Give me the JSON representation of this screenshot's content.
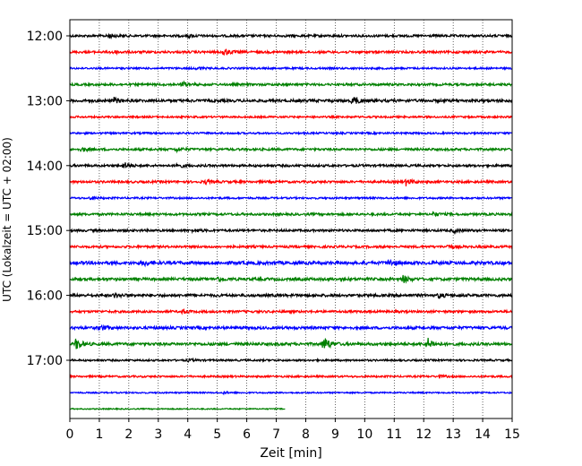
{
  "chart_data": {
    "type": "line",
    "title": "",
    "xlabel": "Zeit  [min]",
    "ylabel": "UTC (Lokalzeit = UTC + 02:00)",
    "xlim": [
      0,
      15
    ],
    "x_ticks": [
      "0",
      "1",
      "2",
      "3",
      "4",
      "5",
      "6",
      "7",
      "8",
      "9",
      "10",
      "11",
      "12",
      "13",
      "14",
      "15"
    ],
    "y_tick_labels": [
      {
        "label": "12:00",
        "row": 0
      },
      {
        "label": "13:00",
        "row": 4
      },
      {
        "label": "14:00",
        "row": 8
      },
      {
        "label": "15:00",
        "row": 12
      },
      {
        "label": "16:00",
        "row": 16
      },
      {
        "label": "17:00",
        "row": 20
      }
    ],
    "grid": "vertical dotted at each minute",
    "row_interval_minutes": 15,
    "color_cycle": [
      "#000000",
      "#ff0000",
      "#0000ff",
      "#008000"
    ],
    "traces": [
      {
        "start": "12:00",
        "end_min": 15,
        "amplitude": 0.25,
        "events": [
          {
            "t": 1.3,
            "amp": 0.5
          },
          {
            "t": 4.0,
            "amp": 0.35
          }
        ]
      },
      {
        "start": "12:15",
        "end_min": 15,
        "amplitude": 0.25,
        "events": [
          {
            "t": 1.4,
            "amp": 0.5
          },
          {
            "t": 5.2,
            "amp": 0.9
          }
        ]
      },
      {
        "start": "12:30",
        "end_min": 15,
        "amplitude": 0.2,
        "events": [
          {
            "t": 4.3,
            "amp": 0.3
          }
        ]
      },
      {
        "start": "12:45",
        "end_min": 15,
        "amplitude": 0.25,
        "events": [
          {
            "t": 3.8,
            "amp": 0.6
          }
        ]
      },
      {
        "start": "13:00",
        "end_min": 15,
        "amplitude": 0.3,
        "events": [
          {
            "t": 1.5,
            "amp": 0.6
          },
          {
            "t": 9.6,
            "amp": 1.1
          }
        ]
      },
      {
        "start": "13:15",
        "end_min": 15,
        "amplitude": 0.2,
        "events": []
      },
      {
        "start": "13:30",
        "end_min": 15,
        "amplitude": 0.2,
        "events": []
      },
      {
        "start": "13:45",
        "end_min": 15,
        "amplitude": 0.25,
        "events": [
          {
            "t": 0.4,
            "amp": 0.5
          },
          {
            "t": 3.6,
            "amp": 0.4
          }
        ]
      },
      {
        "start": "14:00",
        "end_min": 15,
        "amplitude": 0.25,
        "events": [
          {
            "t": 1.8,
            "amp": 0.8
          },
          {
            "t": 3.6,
            "amp": 0.6
          }
        ]
      },
      {
        "start": "14:15",
        "end_min": 15,
        "amplitude": 0.25,
        "events": [
          {
            "t": 4.6,
            "amp": 0.4
          },
          {
            "t": 11.4,
            "amp": 0.8
          }
        ]
      },
      {
        "start": "14:30",
        "end_min": 15,
        "amplitude": 0.2,
        "events": [
          {
            "t": 0.7,
            "amp": 0.3
          }
        ]
      },
      {
        "start": "14:45",
        "end_min": 15,
        "amplitude": 0.25,
        "events": [
          {
            "t": 12.3,
            "amp": 0.5
          }
        ]
      },
      {
        "start": "15:00",
        "end_min": 15,
        "amplitude": 0.25,
        "events": [
          {
            "t": 4.2,
            "amp": 0.3
          },
          {
            "t": 13.0,
            "amp": 0.4
          }
        ]
      },
      {
        "start": "15:15",
        "end_min": 15,
        "amplitude": 0.25,
        "events": [
          {
            "t": 12.8,
            "amp": 0.4
          }
        ]
      },
      {
        "start": "15:30",
        "end_min": 15,
        "amplitude": 0.35,
        "events": [
          {
            "t": 2.5,
            "amp": 0.6
          },
          {
            "t": 10.8,
            "amp": 0.7
          }
        ]
      },
      {
        "start": "15:45",
        "end_min": 15,
        "amplitude": 0.3,
        "events": [
          {
            "t": 5.0,
            "amp": 0.5
          },
          {
            "t": 11.3,
            "amp": 0.8
          }
        ]
      },
      {
        "start": "16:00",
        "end_min": 15,
        "amplitude": 0.3,
        "events": [
          {
            "t": 1.5,
            "amp": 0.5
          },
          {
            "t": 12.5,
            "amp": 0.5
          }
        ]
      },
      {
        "start": "16:15",
        "end_min": 15,
        "amplitude": 0.25,
        "events": [
          {
            "t": 3.8,
            "amp": 0.4
          }
        ]
      },
      {
        "start": "16:30",
        "end_min": 15,
        "amplitude": 0.3,
        "events": [
          {
            "t": 1.0,
            "amp": 0.6
          }
        ]
      },
      {
        "start": "16:45",
        "end_min": 15,
        "amplitude": 0.3,
        "events": [
          {
            "t": 0.2,
            "amp": 1.3
          },
          {
            "t": 8.6,
            "amp": 1.8
          },
          {
            "t": 12.1,
            "amp": 1.5
          }
        ]
      },
      {
        "start": "17:00",
        "end_min": 15,
        "amplitude": 0.2,
        "events": [
          {
            "t": 4.0,
            "amp": 0.3
          }
        ]
      },
      {
        "start": "17:15",
        "end_min": 15,
        "amplitude": 0.2,
        "events": [
          {
            "t": 12.5,
            "amp": 0.3
          }
        ]
      },
      {
        "start": "17:30",
        "end_min": 15,
        "amplitude": 0.15,
        "events": [
          {
            "t": 5.2,
            "amp": 0.2
          }
        ]
      },
      {
        "start": "17:45",
        "end_min": 7.3,
        "amplitude": 0.12,
        "events": []
      }
    ]
  }
}
